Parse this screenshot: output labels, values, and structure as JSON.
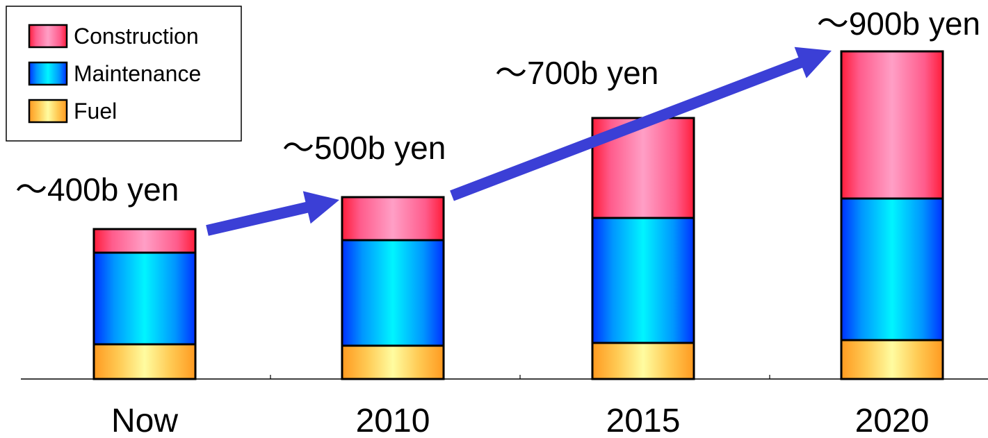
{
  "chart_data": {
    "type": "bar",
    "stacked": true,
    "categories": [
      "Now",
      "2010",
      "2015",
      "2020"
    ],
    "series": [
      {
        "name": "Fuel",
        "values": [
          50,
          48,
          52,
          56
        ]
      },
      {
        "name": "Maintenance",
        "values": [
          132,
          152,
          180,
          204
        ]
      },
      {
        "name": "Construction",
        "values": [
          34,
          62,
          144,
          212
        ]
      }
    ],
    "totals_labels": [
      "～400b yen",
      "～500b yen",
      "～700b yen",
      "～900b yen"
    ],
    "title": "",
    "xlabel": "",
    "ylabel": "",
    "y_axis_visible": false,
    "grid": false,
    "legend_position": "top-left",
    "annotations": [
      "arrow showing upward trend between bars"
    ],
    "colors": {
      "Construction": "#ff6fa0",
      "Maintenance": "#00c8ff",
      "Fuel": "#ffb23f",
      "arrow": "#3b3fd6"
    }
  }
}
